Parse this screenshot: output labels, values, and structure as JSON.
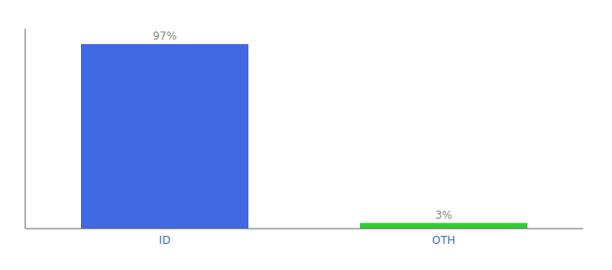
{
  "chart_data": {
    "type": "bar",
    "categories": [
      "ID",
      "OTH"
    ],
    "values": [
      97,
      3
    ],
    "value_labels": [
      "97%",
      "3%"
    ],
    "colors": [
      "#4169e1",
      "#32cd32"
    ],
    "ylim": [
      0,
      105
    ],
    "data_labels": true,
    "tick_labels": "x"
  }
}
